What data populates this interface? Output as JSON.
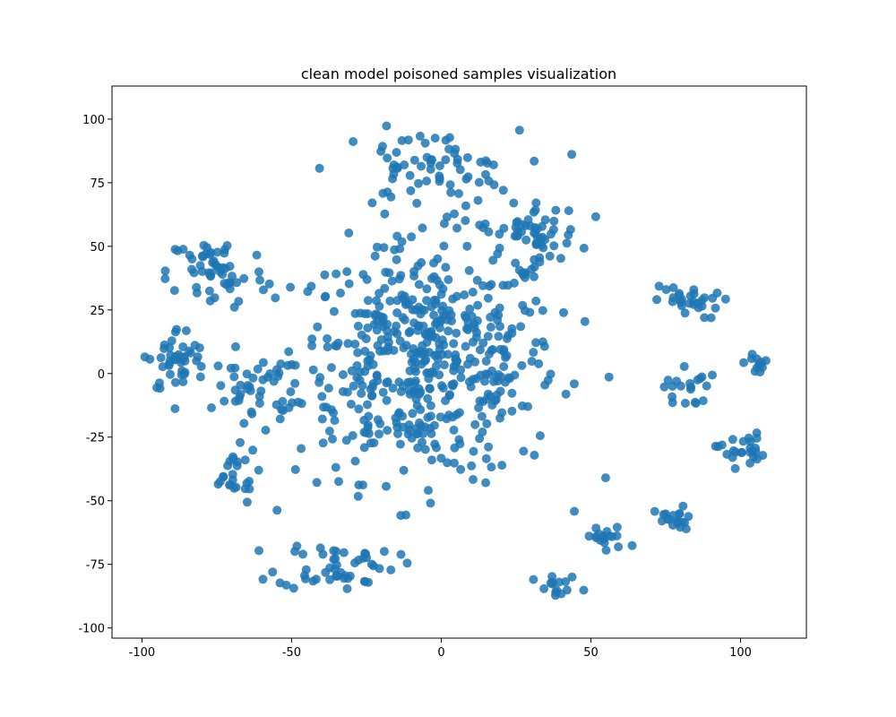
{
  "chart_data": {
    "type": "scatter",
    "title": "clean model poisoned samples visualization",
    "xlabel": "",
    "ylabel": "",
    "xlim": [
      -110,
      122
    ],
    "ylim": [
      -104,
      113
    ],
    "xticks": [
      -100,
      -50,
      0,
      50,
      100
    ],
    "yticks": [
      -100,
      -75,
      -50,
      -25,
      0,
      25,
      50,
      75,
      100
    ],
    "grid": false,
    "color": "#1f77b4",
    "n_points": 1000,
    "clusters": [
      {
        "center": [
          -5,
          5
        ],
        "spread": [
          40,
          42
        ],
        "count": 520
      },
      {
        "center": [
          -5,
          80
        ],
        "spread": [
          28,
          14
        ],
        "count": 70
      },
      {
        "center": [
          -75,
          40
        ],
        "spread": [
          15,
          14
        ],
        "count": 55
      },
      {
        "center": [
          -88,
          5
        ],
        "spread": [
          9,
          12
        ],
        "count": 45
      },
      {
        "center": [
          -35,
          -75
        ],
        "spread": [
          18,
          9
        ],
        "count": 50
      },
      {
        "center": [
          -70,
          -40
        ],
        "spread": [
          8,
          10
        ],
        "count": 25
      },
      {
        "center": [
          82,
          28
        ],
        "spread": [
          10,
          6
        ],
        "count": 30
      },
      {
        "center": [
          82,
          -5
        ],
        "spread": [
          7,
          8
        ],
        "count": 20
      },
      {
        "center": [
          100,
          -30
        ],
        "spread": [
          7,
          6
        ],
        "count": 25
      },
      {
        "center": [
          78,
          -58
        ],
        "spread": [
          6,
          5
        ],
        "count": 20
      },
      {
        "center": [
          106,
          4
        ],
        "spread": [
          4,
          4
        ],
        "count": 12
      },
      {
        "center": [
          40,
          -85
        ],
        "spread": [
          8,
          5
        ],
        "count": 15
      },
      {
        "center": [
          55,
          -65
        ],
        "spread": [
          7,
          5
        ],
        "count": 18
      },
      {
        "center": [
          -62,
          -5
        ],
        "spread": [
          12,
          12
        ],
        "count": 40
      },
      {
        "center": [
          30,
          55
        ],
        "spread": [
          15,
          10
        ],
        "count": 55
      }
    ]
  }
}
